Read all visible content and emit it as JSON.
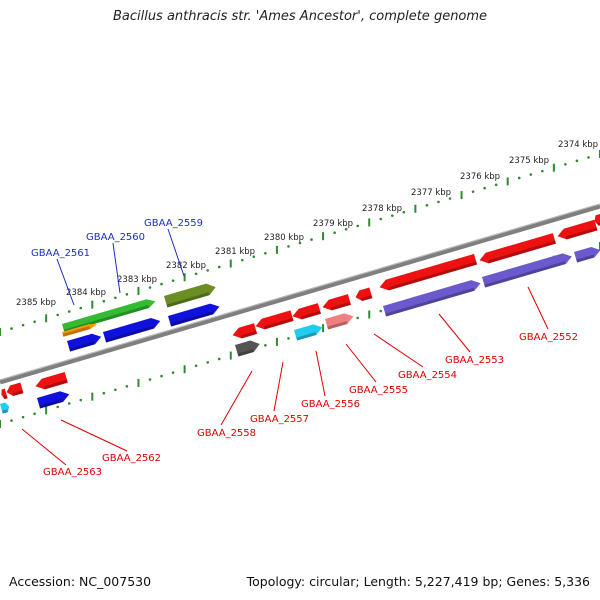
{
  "title": "Bacillus anthracis str. 'Ames Ancestor', complete genome",
  "footer": {
    "accession": "Accession: NC_007530",
    "summary": "Topology: circular; Length: 5,227,419 bp; Genes: 5,336"
  },
  "colors": {
    "ring": "#7f7f7f",
    "tick_ring": "#2e8b2e",
    "forward_label": "#1a2fbf",
    "reverse_label": "#e00000",
    "gene_red": "#ee1111",
    "gene_blue": "#1111dd",
    "gene_cyan": "#22ccee",
    "gene_green": "#33bb33",
    "gene_olive": "#6b8e23",
    "gene_orange": "#ff9900",
    "gene_purple": "#6a5acd",
    "gene_pink": "#f08080",
    "gene_gray": "#555555"
  },
  "kbp_labels": [
    "2374 kbp",
    "2375 kbp",
    "2376 kbp",
    "2377 kbp",
    "2378 kbp",
    "2379 kbp",
    "2380 kbp",
    "2381 kbp",
    "2382 kbp",
    "2383 kbp",
    "2384 kbp",
    "2385 kbp"
  ],
  "forward_genes": [
    "GBAA_2559",
    "GBAA_2560",
    "GBAA_2561"
  ],
  "reverse_genes": [
    "GBAA_2552",
    "GBAA_2553",
    "GBAA_2554",
    "GBAA_2555",
    "GBAA_2556",
    "GBAA_2557",
    "GBAA_2558",
    "GBAA_2562",
    "GBAA_2563"
  ]
}
